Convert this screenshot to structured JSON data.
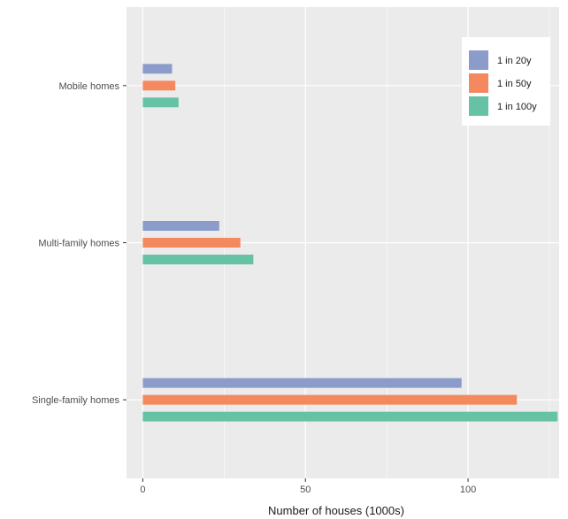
{
  "chart_data": {
    "type": "bar",
    "orientation": "horizontal",
    "categories": [
      "Mobile homes",
      "Multi-family homes",
      "Single-family homes"
    ],
    "series": [
      {
        "name": "1 in 20y",
        "values": [
          9,
          23.5,
          98
        ],
        "color": "#8c9cca"
      },
      {
        "name": "1 in 50y",
        "values": [
          10,
          30,
          115
        ],
        "color": "#f4895f"
      },
      {
        "name": "1 in 100y",
        "values": [
          11,
          34,
          127.5
        ],
        "color": "#66c2a5"
      }
    ],
    "x_ticks": [
      "0",
      "50",
      "100"
    ],
    "xlabel": "Number of houses (1000s)",
    "ylabel": "",
    "xlim": [
      -5,
      128
    ],
    "grid": true,
    "legend_position": "top-right",
    "background_color": "#ebebeb",
    "grid_color": "#ffffff"
  }
}
